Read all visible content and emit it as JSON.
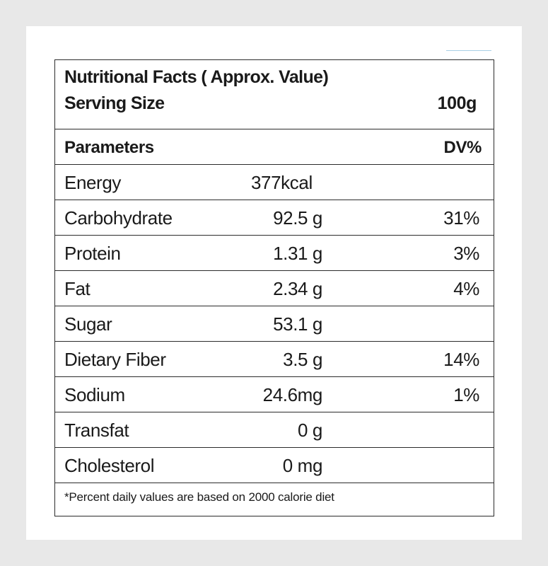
{
  "header": {
    "title": "Nutritional Facts ( Approx. Value)",
    "serving_label": "Serving Size",
    "serving_value": "100g"
  },
  "columns": {
    "parameters_label": "Parameters",
    "dv_label": "DV%"
  },
  "rows": [
    {
      "name": "Energy",
      "amount": "377kcal",
      "dv": ""
    },
    {
      "name": "Carbohydrate",
      "amount": "92.5 g",
      "dv": "31%"
    },
    {
      "name": "Protein",
      "amount": "1.31 g",
      "dv": "3%"
    },
    {
      "name": "Fat",
      "amount": "2.34 g",
      "dv": "4%"
    },
    {
      "name": "Sugar",
      "amount": "53.1 g",
      "dv": ""
    },
    {
      "name": "Dietary Fiber",
      "amount": "3.5 g",
      "dv": "14%"
    },
    {
      "name": "Sodium",
      "amount": "24.6mg",
      "dv": "1%"
    },
    {
      "name": "Transfat",
      "amount": "0 g",
      "dv": ""
    },
    {
      "name": "Cholesterol",
      "amount": "0 mg",
      "dv": ""
    }
  ],
  "footnote": "*Percent daily values are based on 2000 calorie diet",
  "colors": {
    "page_background": "#e8e8e8",
    "sheet_background": "#ffffff",
    "border": "#2b2b2b",
    "accent_line": "#a9cfe5",
    "text": "#1a1a1a"
  }
}
